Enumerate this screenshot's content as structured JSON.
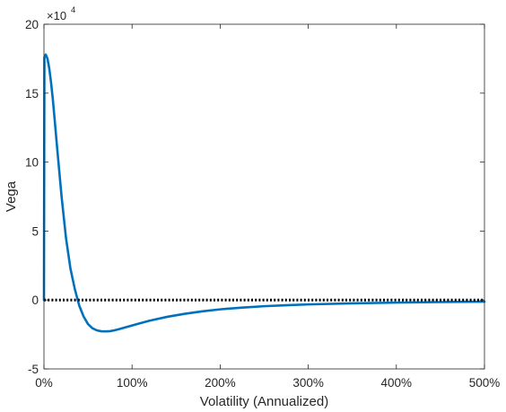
{
  "chart_data": {
    "type": "line",
    "title": "",
    "xlabel": "Volatility (Annualized)",
    "ylabel": "Vega",
    "xlim": [
      0,
      500
    ],
    "ylim": [
      -5,
      20
    ],
    "x_unit": "%",
    "y_multiplier": "×10",
    "y_multiplier_exponent": "4",
    "x_ticks": [
      0,
      100,
      200,
      300,
      400,
      500
    ],
    "x_tick_labels": [
      "0%",
      "100%",
      "200%",
      "300%",
      "400%",
      "500%"
    ],
    "y_ticks": [
      -5,
      0,
      5,
      10,
      15,
      20
    ],
    "y_tick_labels": [
      "-5",
      "0",
      "5",
      "10",
      "15",
      "20"
    ],
    "grid": false,
    "box": true,
    "series": [
      {
        "color": "#0072BD",
        "style": "solid",
        "x": [
          0,
          0.5,
          2,
          4,
          6,
          8,
          10,
          12,
          15,
          20,
          25,
          30,
          35,
          40,
          45,
          50,
          55,
          60,
          65,
          70,
          75,
          80,
          85,
          90,
          100,
          110,
          120,
          140,
          160,
          180,
          200,
          225,
          250,
          275,
          300,
          350,
          400,
          450,
          500
        ],
        "y": [
          0,
          17.6,
          17.8,
          17.5,
          16.8,
          15.8,
          14.6,
          13.2,
          11.0,
          7.5,
          4.5,
          2.3,
          0.8,
          -0.4,
          -1.2,
          -1.75,
          -2.05,
          -2.2,
          -2.27,
          -2.28,
          -2.26,
          -2.2,
          -2.12,
          -2.03,
          -1.85,
          -1.67,
          -1.5,
          -1.22,
          -1.0,
          -0.82,
          -0.68,
          -0.55,
          -0.45,
          -0.38,
          -0.32,
          -0.24,
          -0.19,
          -0.15,
          -0.12
        ]
      },
      {
        "color": "#000000",
        "style": "dotted",
        "x": [
          0,
          500
        ],
        "y": [
          0,
          0
        ]
      }
    ]
  }
}
